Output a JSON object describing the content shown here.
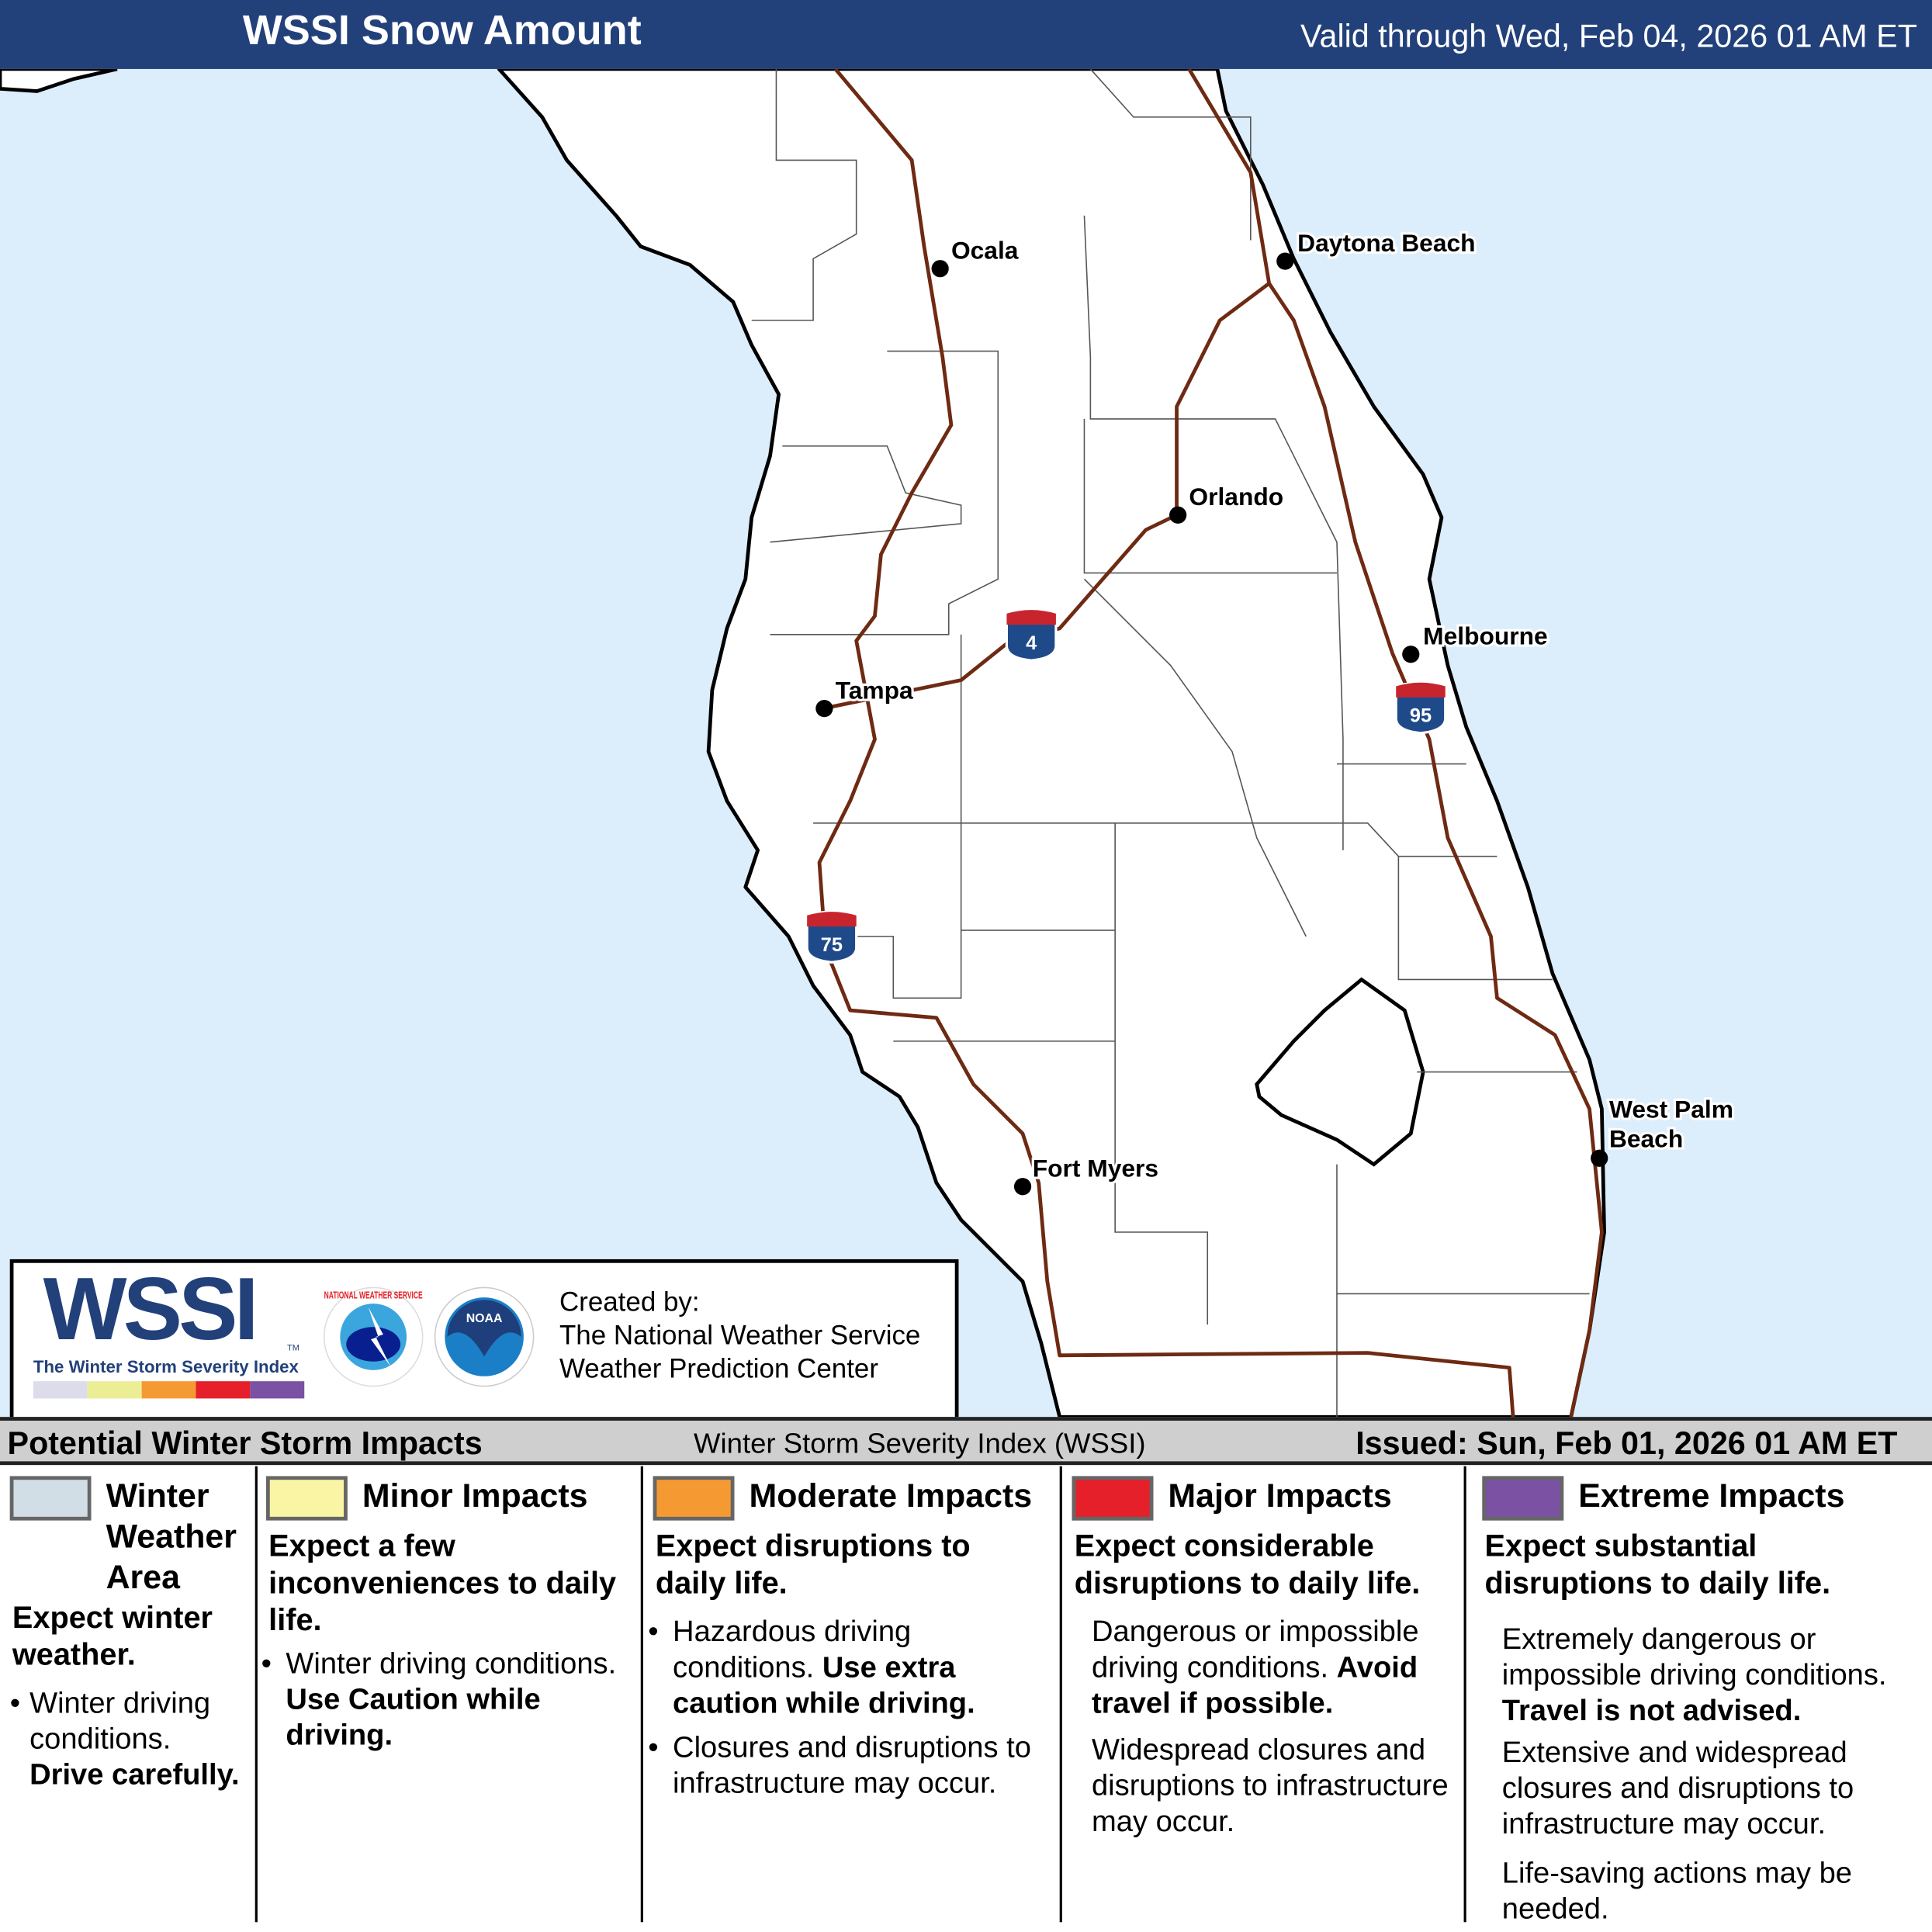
{
  "header": {
    "title": "WSSI Snow Amount",
    "valid": "Valid through Wed, Feb 04, 2026 01 AM ET"
  },
  "map": {
    "colors": {
      "ocean": "#dcedfb",
      "land": "#ffffff",
      "interstate": "#6e2a12"
    },
    "cities": [
      {
        "name": "Ocala"
      },
      {
        "name": "Daytona Beach"
      },
      {
        "name": "Orlando"
      },
      {
        "name": "Melbourne"
      },
      {
        "name": "Tampa"
      },
      {
        "name": "Fort Myers"
      },
      {
        "name": "West Palm",
        "name2": "Beach"
      }
    ],
    "shields": [
      {
        "number": "4"
      },
      {
        "number": "95"
      },
      {
        "number": "75"
      }
    ]
  },
  "logo": {
    "wordmark": "WSSI",
    "tm": "TM",
    "tagline": "The Winter Storm Severity Index",
    "nws_ring": "NATIONAL WEATHER SERVICE",
    "noaa": "NOAA",
    "credit_label": "Created by:",
    "credit_line1": "The National Weather Service",
    "credit_line2": "Weather Prediction Center"
  },
  "bar": {
    "left": "Potential Winter Storm Impacts",
    "center": "Winter Storm Severity Index (WSSI)",
    "right": "Issued: Sun, Feb 01, 2026 01 AM ET"
  },
  "legend": [
    {
      "color": "#d2dee6",
      "title": "Winter Weather Area",
      "sub": "Expect winter weather.",
      "b1": "Winter driving conditions.",
      "b1bold": "Drive carefully."
    },
    {
      "color": "#f9f5a4",
      "title": "Minor Impacts",
      "sub": "Expect a few inconveniences to daily life.",
      "b1": "Winter driving conditions.",
      "b1bold": "Use Caution while driving."
    },
    {
      "color": "#f59a33",
      "title": "Moderate Impacts",
      "sub": "Expect disruptions to daily life.",
      "b1": "Hazardous driving conditions.",
      "b1bold": "Use extra caution while driving.",
      "b2": "Closures and disruptions to infrastructure may occur."
    },
    {
      "color": "#e5202a",
      "title": "Major Impacts",
      "sub": "Expect considerable disruptions to daily life.",
      "b1": "Dangerous or impossible driving conditions.",
      "b1bold": "Avoid travel if possible.",
      "b2": "Widespread closures and disruptions to infrastructure may occur."
    },
    {
      "color": "#7b51a3",
      "title": "Extreme Impacts",
      "sub": "Expect substantial disruptions to daily life.",
      "b1": "Extremely dangerous or impossible driving conditions.",
      "b1bold": "Travel is not advised.",
      "b2": "Extensive and widespread closures and disruptions to infrastructure may occur.",
      "b3": "Life-saving actions may be needed."
    }
  ]
}
